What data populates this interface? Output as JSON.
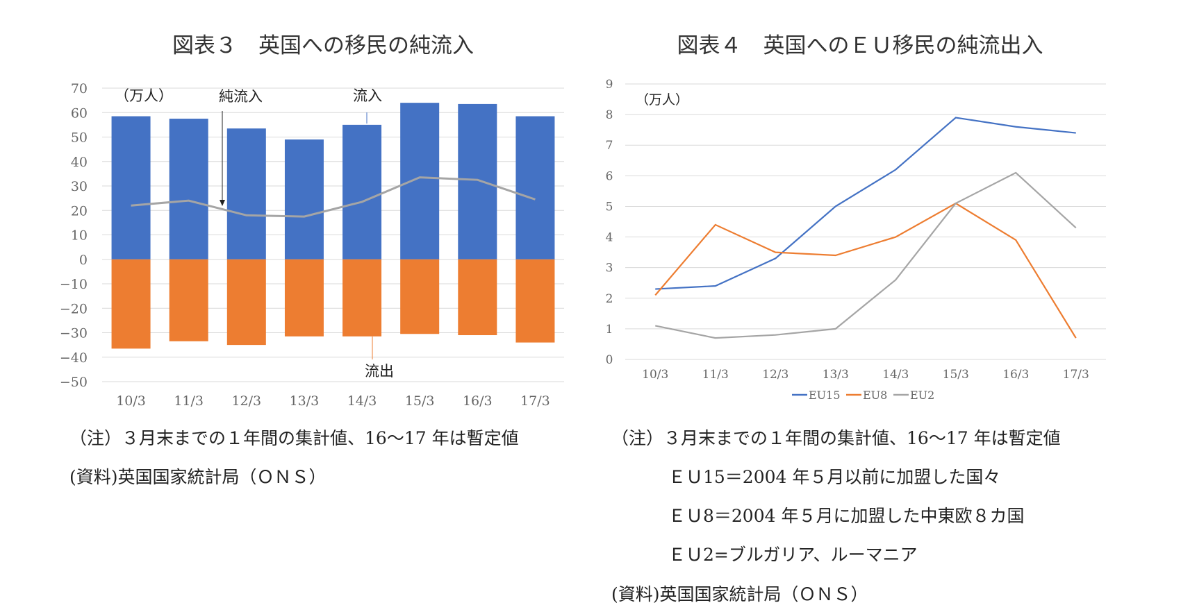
{
  "chart_data": [
    {
      "type": "bar",
      "title": "図表３　英国への移民の純流入",
      "unit_label": "（万人）",
      "categories": [
        "10/3",
        "11/3",
        "12/3",
        "13/3",
        "14/3",
        "15/3",
        "16/3",
        "17/3"
      ],
      "ylim": [
        -50,
        70
      ],
      "yticks": [
        70,
        60,
        50,
        40,
        30,
        20,
        10,
        0,
        -10,
        -20,
        -30,
        -40,
        -50
      ],
      "grid": true,
      "series": [
        {
          "name": "流入",
          "kind": "bar",
          "color": "#4472C4",
          "values": [
            58.5,
            57.5,
            53.5,
            49,
            55,
            64,
            63.5,
            58.5
          ]
        },
        {
          "name": "流出",
          "kind": "bar",
          "color": "#ED7D31",
          "values": [
            -36.5,
            -33.5,
            -35,
            -31.5,
            -31.5,
            -30.5,
            -31,
            -34
          ]
        },
        {
          "name": "純流入",
          "kind": "line",
          "color": "#A5A5A5",
          "values": [
            22,
            24,
            18,
            17.5,
            23.5,
            33.5,
            32.5,
            24.5
          ]
        }
      ],
      "annotations": {
        "net": "純流入",
        "inflow": "流入",
        "outflow": "流出"
      }
    },
    {
      "type": "line",
      "title": "図表４　英国へのＥＵ移民の純流出入",
      "unit_label": "（万人）",
      "categories": [
        "10/3",
        "11/3",
        "12/3",
        "13/3",
        "14/3",
        "15/3",
        "16/3",
        "17/3"
      ],
      "ylim": [
        0,
        9
      ],
      "yticks": [
        9,
        8,
        7,
        6,
        5,
        4,
        3,
        2,
        1,
        0
      ],
      "grid": true,
      "legend_position": "bottom",
      "series": [
        {
          "name": "EU15",
          "color": "#4472C4",
          "values": [
            2.3,
            2.4,
            3.3,
            5.0,
            6.2,
            7.9,
            7.6,
            7.4
          ]
        },
        {
          "name": "EU8",
          "color": "#ED7D31",
          "values": [
            2.1,
            4.4,
            3.5,
            3.4,
            4.0,
            5.1,
            3.9,
            0.7
          ]
        },
        {
          "name": "EU2",
          "color": "#A5A5A5",
          "values": [
            1.1,
            0.7,
            0.8,
            1.0,
            2.6,
            5.1,
            6.1,
            4.3
          ]
        }
      ]
    }
  ],
  "notes_left": [
    "（注）３月末までの１年間の集計値、16～17 年は暫定値",
    "(資料)英国国家統計局（ＯＮＳ）"
  ],
  "notes_right": [
    "（注）３月末までの１年間の集計値、16～17 年は暫定値",
    "ＥＵ15＝2004 年５月以前に加盟した国々",
    "ＥＵ8＝2004 年５月に加盟した中東欧８カ国",
    "ＥＵ2=ブルガリア、ルーマニア",
    "(資料)英国国家統計局（ＯＮＳ）"
  ]
}
